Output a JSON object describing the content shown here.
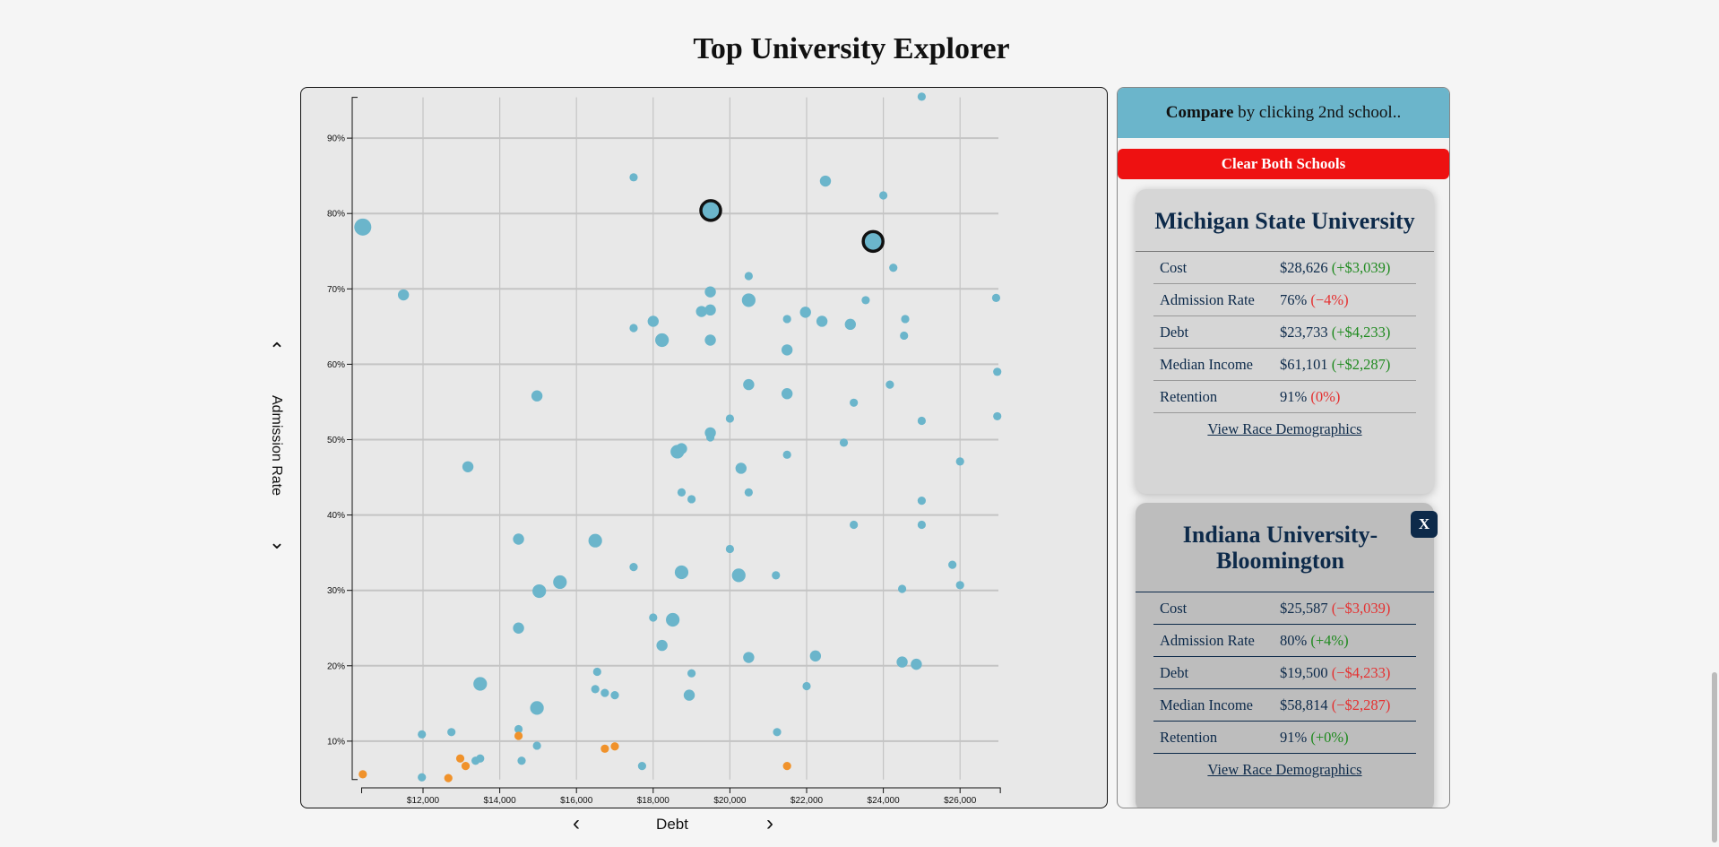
{
  "title": "Top University Explorer",
  "chart_data": {
    "type": "scatter",
    "xlabel": "Debt",
    "ylabel": "Admission Rate",
    "xlim": [
      10400,
      27050
    ],
    "ylim": [
      4.9,
      95.4
    ],
    "x_ticks": [
      "$12,000",
      "$14,000",
      "$16,000",
      "$18,000",
      "$20,000",
      "$22,000",
      "$24,000",
      "$26,000"
    ],
    "x_tick_values": [
      12000,
      14000,
      16000,
      18000,
      20000,
      22000,
      24000,
      26000
    ],
    "y_ticks": [
      "10%",
      "20%",
      "30%",
      "40%",
      "50%",
      "60%",
      "70%",
      "80%",
      "90%"
    ],
    "y_tick_values": [
      10,
      20,
      30,
      40,
      50,
      60,
      70,
      80,
      90
    ],
    "grid": true,
    "colors": {
      "blue": "#6bb5cb",
      "orange": "#f0922b",
      "highlight_stroke": "#111111"
    },
    "points": [
      {
        "x": 25000,
        "y": 95.5,
        "s": 1,
        "c": "blue"
      },
      {
        "x": 10430,
        "y": 78.2,
        "s": 4,
        "c": "blue"
      },
      {
        "x": 11490,
        "y": 69.2,
        "s": 2,
        "c": "blue"
      },
      {
        "x": 17490,
        "y": 84.8,
        "s": 1,
        "c": "blue"
      },
      {
        "x": 19500,
        "y": 80.4,
        "s": 5,
        "c": "blue",
        "selected": true
      },
      {
        "x": 23733,
        "y": 76.3,
        "s": 5,
        "c": "blue",
        "selected": true
      },
      {
        "x": 22490,
        "y": 84.3,
        "s": 2,
        "c": "blue"
      },
      {
        "x": 24000,
        "y": 82.4,
        "s": 1,
        "c": "blue"
      },
      {
        "x": 24260,
        "y": 72.8,
        "s": 1,
        "c": "blue"
      },
      {
        "x": 20490,
        "y": 71.7,
        "s": 1,
        "c": "blue"
      },
      {
        "x": 19490,
        "y": 69.6,
        "s": 2,
        "c": "blue"
      },
      {
        "x": 20490,
        "y": 68.5,
        "s": 3,
        "c": "blue"
      },
      {
        "x": 19260,
        "y": 67.0,
        "s": 2,
        "c": "blue"
      },
      {
        "x": 19490,
        "y": 67.2,
        "s": 2,
        "c": "blue"
      },
      {
        "x": 21970,
        "y": 66.9,
        "s": 2,
        "c": "blue"
      },
      {
        "x": 21490,
        "y": 66.0,
        "s": 1,
        "c": "blue"
      },
      {
        "x": 22400,
        "y": 65.7,
        "s": 2,
        "c": "blue"
      },
      {
        "x": 23140,
        "y": 65.3,
        "s": 2,
        "c": "blue"
      },
      {
        "x": 23540,
        "y": 68.5,
        "s": 1,
        "c": "blue"
      },
      {
        "x": 24570,
        "y": 66.0,
        "s": 1,
        "c": "blue"
      },
      {
        "x": 24540,
        "y": 63.8,
        "s": 1,
        "c": "blue"
      },
      {
        "x": 26940,
        "y": 68.8,
        "s": 1,
        "c": "blue"
      },
      {
        "x": 18000,
        "y": 65.7,
        "s": 2,
        "c": "blue"
      },
      {
        "x": 17490,
        "y": 64.8,
        "s": 1,
        "c": "blue"
      },
      {
        "x": 18230,
        "y": 63.2,
        "s": 3,
        "c": "blue"
      },
      {
        "x": 19490,
        "y": 63.2,
        "s": 2,
        "c": "blue"
      },
      {
        "x": 21490,
        "y": 61.9,
        "s": 2,
        "c": "blue"
      },
      {
        "x": 26970,
        "y": 59.0,
        "s": 1,
        "c": "blue"
      },
      {
        "x": 14970,
        "y": 55.8,
        "s": 2,
        "c": "blue"
      },
      {
        "x": 20490,
        "y": 57.3,
        "s": 2,
        "c": "blue"
      },
      {
        "x": 21490,
        "y": 56.1,
        "s": 2,
        "c": "blue"
      },
      {
        "x": 24170,
        "y": 57.3,
        "s": 1,
        "c": "blue"
      },
      {
        "x": 23230,
        "y": 54.9,
        "s": 1,
        "c": "blue"
      },
      {
        "x": 20000,
        "y": 52.8,
        "s": 1,
        "c": "blue"
      },
      {
        "x": 25000,
        "y": 52.5,
        "s": 1,
        "c": "blue"
      },
      {
        "x": 26970,
        "y": 53.1,
        "s": 1,
        "c": "blue"
      },
      {
        "x": 19490,
        "y": 50.9,
        "s": 2,
        "c": "blue"
      },
      {
        "x": 19490,
        "y": 50.3,
        "s": 1,
        "c": "blue"
      },
      {
        "x": 22970,
        "y": 49.6,
        "s": 1,
        "c": "blue"
      },
      {
        "x": 18630,
        "y": 48.4,
        "s": 3,
        "c": "blue"
      },
      {
        "x": 18740,
        "y": 48.8,
        "s": 2,
        "c": "blue"
      },
      {
        "x": 21490,
        "y": 48.0,
        "s": 1,
        "c": "blue"
      },
      {
        "x": 26000,
        "y": 47.1,
        "s": 1,
        "c": "blue"
      },
      {
        "x": 13170,
        "y": 46.4,
        "s": 2,
        "c": "blue"
      },
      {
        "x": 20290,
        "y": 46.2,
        "s": 2,
        "c": "blue"
      },
      {
        "x": 18740,
        "y": 43.0,
        "s": 1,
        "c": "blue"
      },
      {
        "x": 19000,
        "y": 42.1,
        "s": 1,
        "c": "blue"
      },
      {
        "x": 20490,
        "y": 43.0,
        "s": 1,
        "c": "blue"
      },
      {
        "x": 25000,
        "y": 41.9,
        "s": 1,
        "c": "blue"
      },
      {
        "x": 23230,
        "y": 38.7,
        "s": 1,
        "c": "blue"
      },
      {
        "x": 25000,
        "y": 38.7,
        "s": 1,
        "c": "blue"
      },
      {
        "x": 14490,
        "y": 36.8,
        "s": 2,
        "c": "blue"
      },
      {
        "x": 16490,
        "y": 36.6,
        "s": 3,
        "c": "blue"
      },
      {
        "x": 20000,
        "y": 35.5,
        "s": 1,
        "c": "blue"
      },
      {
        "x": 17490,
        "y": 33.1,
        "s": 1,
        "c": "blue"
      },
      {
        "x": 25800,
        "y": 33.4,
        "s": 1,
        "c": "blue"
      },
      {
        "x": 18740,
        "y": 32.4,
        "s": 3,
        "c": "blue"
      },
      {
        "x": 20230,
        "y": 32.0,
        "s": 3,
        "c": "blue"
      },
      {
        "x": 21200,
        "y": 32.0,
        "s": 1,
        "c": "blue"
      },
      {
        "x": 15570,
        "y": 31.1,
        "s": 3,
        "c": "blue"
      },
      {
        "x": 15030,
        "y": 29.9,
        "s": 3,
        "c": "blue"
      },
      {
        "x": 24490,
        "y": 30.2,
        "s": 1,
        "c": "blue"
      },
      {
        "x": 26000,
        "y": 30.7,
        "s": 1,
        "c": "blue"
      },
      {
        "x": 18000,
        "y": 26.4,
        "s": 1,
        "c": "blue"
      },
      {
        "x": 18510,
        "y": 26.1,
        "s": 3,
        "c": "blue"
      },
      {
        "x": 14490,
        "y": 25.0,
        "s": 2,
        "c": "blue"
      },
      {
        "x": 18230,
        "y": 22.7,
        "s": 2,
        "c": "blue"
      },
      {
        "x": 20490,
        "y": 21.1,
        "s": 2,
        "c": "blue"
      },
      {
        "x": 22230,
        "y": 21.3,
        "s": 2,
        "c": "blue"
      },
      {
        "x": 24490,
        "y": 20.5,
        "s": 2,
        "c": "blue"
      },
      {
        "x": 24860,
        "y": 20.2,
        "s": 2,
        "c": "blue"
      },
      {
        "x": 16540,
        "y": 19.2,
        "s": 1,
        "c": "blue"
      },
      {
        "x": 19000,
        "y": 19.0,
        "s": 1,
        "c": "blue"
      },
      {
        "x": 13490,
        "y": 17.6,
        "s": 3,
        "c": "blue"
      },
      {
        "x": 22000,
        "y": 17.3,
        "s": 1,
        "c": "blue"
      },
      {
        "x": 16490,
        "y": 16.9,
        "s": 1,
        "c": "blue"
      },
      {
        "x": 16740,
        "y": 16.4,
        "s": 1,
        "c": "blue"
      },
      {
        "x": 17000,
        "y": 16.1,
        "s": 1,
        "c": "blue"
      },
      {
        "x": 18940,
        "y": 16.1,
        "s": 2,
        "c": "blue"
      },
      {
        "x": 14970,
        "y": 14.4,
        "s": 3,
        "c": "blue"
      },
      {
        "x": 11970,
        "y": 10.9,
        "s": 1,
        "c": "blue"
      },
      {
        "x": 12740,
        "y": 11.2,
        "s": 1,
        "c": "blue"
      },
      {
        "x": 14490,
        "y": 11.6,
        "s": 1,
        "c": "blue"
      },
      {
        "x": 21230,
        "y": 11.2,
        "s": 1,
        "c": "blue"
      },
      {
        "x": 14970,
        "y": 9.4,
        "s": 1,
        "c": "blue"
      },
      {
        "x": 13370,
        "y": 7.4,
        "s": 1,
        "c": "blue"
      },
      {
        "x": 13490,
        "y": 7.7,
        "s": 1,
        "c": "blue"
      },
      {
        "x": 14570,
        "y": 7.4,
        "s": 1,
        "c": "blue"
      },
      {
        "x": 17710,
        "y": 6.7,
        "s": 1,
        "c": "blue"
      },
      {
        "x": 11970,
        "y": 5.2,
        "s": 1,
        "c": "blue"
      },
      {
        "x": 10430,
        "y": 5.6,
        "s": 1,
        "c": "orange"
      },
      {
        "x": 12970,
        "y": 7.7,
        "s": 1,
        "c": "orange"
      },
      {
        "x": 13110,
        "y": 6.7,
        "s": 1,
        "c": "orange"
      },
      {
        "x": 12660,
        "y": 5.1,
        "s": 1,
        "c": "orange"
      },
      {
        "x": 14490,
        "y": 10.7,
        "s": 1,
        "c": "orange"
      },
      {
        "x": 16740,
        "y": 9.0,
        "s": 1,
        "c": "orange"
      },
      {
        "x": 17000,
        "y": 9.3,
        "s": 1,
        "c": "orange"
      },
      {
        "x": 21490,
        "y": 6.7,
        "s": 1,
        "c": "orange"
      }
    ]
  },
  "controls": {
    "y_up_icon": "chevron-up-icon",
    "y_down_icon": "chevron-down-icon",
    "x_prev_icon": "chevron-left-icon",
    "x_next_icon": "chevron-right-icon",
    "y_label": "Admission Rate",
    "x_label": "Debt"
  },
  "compare": {
    "header_bold": "Compare",
    "header_rest": " by clicking 2nd school..",
    "clear_label": "Clear Both Schools",
    "schools": [
      {
        "name": "Michigan State University",
        "rows": [
          {
            "label": "Cost",
            "value": "$28,626",
            "diff": "(+$3,039)",
            "sign": "pos"
          },
          {
            "label": "Admission Rate",
            "value": "76%",
            "diff": "(−4%)",
            "sign": "neg"
          },
          {
            "label": "Debt",
            "value": "$23,733",
            "diff": "(+$4,233)",
            "sign": "pos"
          },
          {
            "label": "Median Income",
            "value": "$61,101",
            "diff": "(+$2,287)",
            "sign": "pos"
          },
          {
            "label": "Retention",
            "value": "91%",
            "diff": "(0%)",
            "sign": "neg"
          }
        ],
        "link": "View Race Demographics"
      },
      {
        "name": "Indiana University-Bloomington",
        "close_label": "X",
        "rows": [
          {
            "label": "Cost",
            "value": "$25,587",
            "diff": "(−$3,039)",
            "sign": "neg"
          },
          {
            "label": "Admission Rate",
            "value": "80%",
            "diff": "(+4%)",
            "sign": "pos"
          },
          {
            "label": "Debt",
            "value": "$19,500",
            "diff": "(−$4,233)",
            "sign": "neg"
          },
          {
            "label": "Median Income",
            "value": "$58,814",
            "diff": "(−$2,287)",
            "sign": "neg"
          },
          {
            "label": "Retention",
            "value": "91%",
            "diff": "(+0%)",
            "sign": "pos"
          }
        ],
        "link": "View Race Demographics"
      }
    ]
  }
}
